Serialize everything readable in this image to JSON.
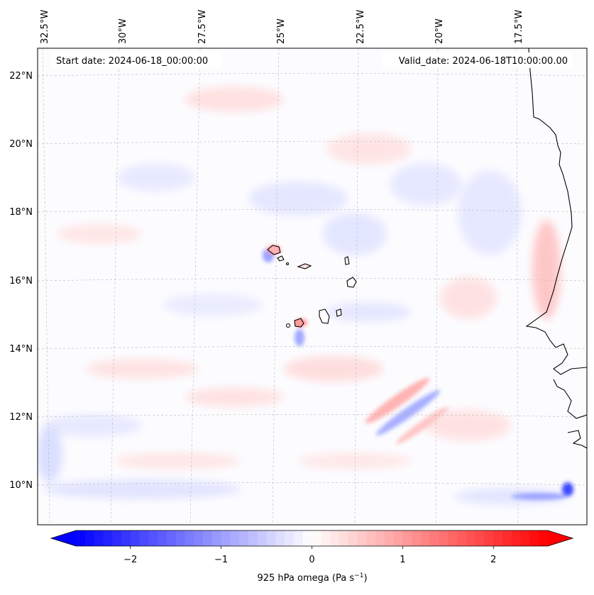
{
  "header": {
    "start_date": "Start date: 2024-06-18_00:00:00",
    "valid_date": "Valid_date: 2024-06-18T10:00:00.00"
  },
  "map": {
    "lon_labels": [
      "32.5°W",
      "30°W",
      "27.5°W",
      "25°W",
      "22.5°W",
      "20°W",
      "17.5°W"
    ],
    "lat_labels": [
      "22°N",
      "20°N",
      "18°N",
      "16°N",
      "14°N",
      "12°N",
      "10°N"
    ],
    "field": "925 hPa omega",
    "colors": {
      "negative": "#0000ff",
      "zero": "#ffffff",
      "positive": "#ff0000",
      "coastline": "#000000",
      "grid": "#b0b0b0"
    },
    "grid_lines": "on",
    "colormap": "bwr"
  },
  "colorbar": {
    "ticks": [
      "−2",
      "−1",
      "0",
      "1",
      "2"
    ],
    "tick_values": [
      -2,
      -1,
      0,
      1,
      2
    ],
    "range": [
      -2.6,
      2.6
    ],
    "extend": "both",
    "label": "925 hPa omega (Pa s",
    "label_exponent": "−1",
    "label_close": ")"
  }
}
